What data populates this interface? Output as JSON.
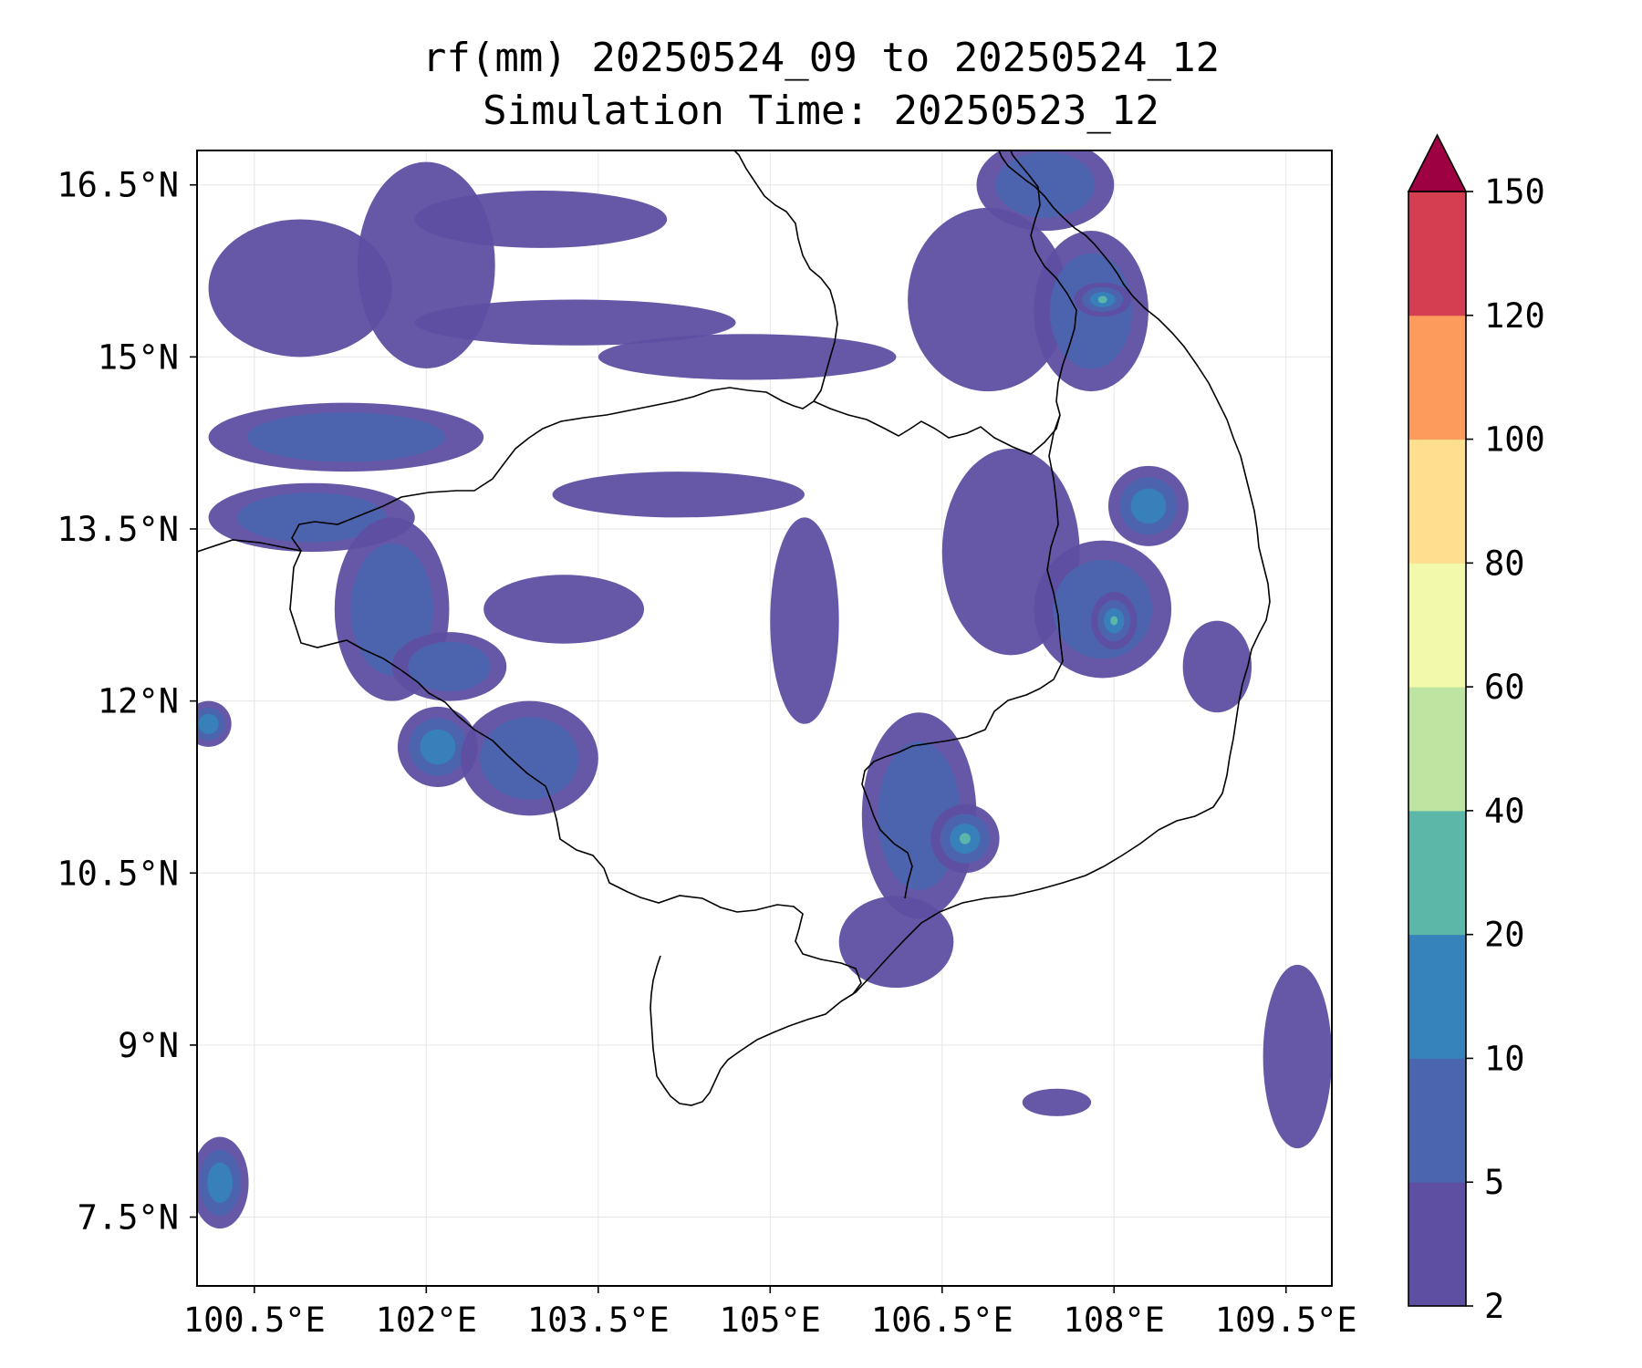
{
  "chart_data": {
    "type": "heatmap",
    "title": "rf(mm) 20250524_09 to 20250524_12",
    "subtitle": "Simulation Time: 20250523_12",
    "xlim": [
      100.0,
      109.9
    ],
    "ylim": [
      6.9,
      16.8
    ],
    "x_ticks": [
      100.5,
      102.0,
      103.5,
      105.0,
      106.5,
      108.0,
      109.5
    ],
    "y_ticks": [
      7.5,
      9.0,
      10.5,
      12.0,
      13.5,
      15.0,
      16.5
    ],
    "x_tick_labels": [
      "100.5°E",
      "102°E",
      "103.5°E",
      "105°E",
      "106.5°E",
      "108°E",
      "109.5°E"
    ],
    "y_tick_labels": [
      "7.5°N",
      "9°N",
      "10.5°N",
      "12°N",
      "13.5°N",
      "15°N",
      "16.5°N"
    ],
    "grid": true,
    "colorbar": {
      "levels": [
        2,
        5,
        10,
        20,
        40,
        60,
        80,
        100,
        120,
        150
      ],
      "tick_labels": [
        "2",
        "5",
        "10",
        "20",
        "40",
        "60",
        "80",
        "100",
        "120",
        "150"
      ],
      "colors": [
        "#5e4fa2",
        "#4b65ae",
        "#3682ba",
        "#5cb7a9",
        "#bde4a0",
        "#f2f9aa",
        "#fedf8f",
        "#fc9b5b",
        "#d53e50"
      ],
      "extend_color": "#9e0142",
      "extend": "max"
    },
    "rain_areas": [
      {
        "lon": 101.3,
        "lat": 14.3,
        "rx": 1.2,
        "ry": 0.3,
        "level": 1
      },
      {
        "lon": 100.9,
        "lat": 15.6,
        "rx": 0.8,
        "ry": 0.6,
        "level": 0
      },
      {
        "lon": 102.0,
        "lat": 15.8,
        "rx": 0.6,
        "ry": 0.9,
        "level": 0
      },
      {
        "lon": 103.3,
        "lat": 15.3,
        "rx": 1.4,
        "ry": 0.2,
        "level": 0
      },
      {
        "lon": 104.8,
        "lat": 15.0,
        "rx": 1.3,
        "ry": 0.2,
        "level": 0
      },
      {
        "lon": 103.0,
        "lat": 16.2,
        "rx": 1.1,
        "ry": 0.25,
        "level": 0
      },
      {
        "lon": 101.0,
        "lat": 13.6,
        "rx": 0.9,
        "ry": 0.3,
        "level": 1
      },
      {
        "lon": 101.7,
        "lat": 12.8,
        "rx": 0.5,
        "ry": 0.8,
        "level": 1
      },
      {
        "lon": 102.2,
        "lat": 12.3,
        "rx": 0.5,
        "ry": 0.3,
        "level": 1
      },
      {
        "lon": 102.1,
        "lat": 11.6,
        "rx": 0.35,
        "ry": 0.35,
        "level": 2
      },
      {
        "lon": 102.9,
        "lat": 11.5,
        "rx": 0.6,
        "ry": 0.5,
        "level": 1
      },
      {
        "lon": 103.2,
        "lat": 12.8,
        "rx": 0.7,
        "ry": 0.3,
        "level": 0
      },
      {
        "lon": 104.2,
        "lat": 13.8,
        "rx": 1.1,
        "ry": 0.2,
        "level": 0
      },
      {
        "lon": 105.3,
        "lat": 12.7,
        "rx": 0.3,
        "ry": 0.9,
        "level": 0
      },
      {
        "lon": 106.3,
        "lat": 11.0,
        "rx": 0.5,
        "ry": 0.9,
        "level": 1
      },
      {
        "lon": 106.7,
        "lat": 10.8,
        "rx": 0.3,
        "ry": 0.3,
        "level": 3
      },
      {
        "lon": 106.1,
        "lat": 9.9,
        "rx": 0.5,
        "ry": 0.4,
        "level": 0
      },
      {
        "lon": 106.9,
        "lat": 15.5,
        "rx": 0.7,
        "ry": 0.8,
        "level": 0
      },
      {
        "lon": 107.4,
        "lat": 16.5,
        "rx": 0.6,
        "ry": 0.4,
        "level": 1
      },
      {
        "lon": 107.8,
        "lat": 15.4,
        "rx": 0.5,
        "ry": 0.7,
        "level": 1
      },
      {
        "lon": 107.9,
        "lat": 15.5,
        "rx": 0.25,
        "ry": 0.15,
        "level": 3
      },
      {
        "lon": 107.1,
        "lat": 13.3,
        "rx": 0.6,
        "ry": 0.9,
        "level": 0
      },
      {
        "lon": 107.9,
        "lat": 12.8,
        "rx": 0.6,
        "ry": 0.6,
        "level": 1
      },
      {
        "lon": 108.0,
        "lat": 12.7,
        "rx": 0.2,
        "ry": 0.25,
        "level": 3
      },
      {
        "lon": 108.3,
        "lat": 13.7,
        "rx": 0.35,
        "ry": 0.35,
        "level": 2
      },
      {
        "lon": 108.9,
        "lat": 12.3,
        "rx": 0.3,
        "ry": 0.4,
        "level": 0
      },
      {
        "lon": 100.1,
        "lat": 11.8,
        "rx": 0.2,
        "ry": 0.2,
        "level": 2
      },
      {
        "lon": 100.2,
        "lat": 7.8,
        "rx": 0.25,
        "ry": 0.4,
        "level": 2
      },
      {
        "lon": 109.6,
        "lat": 8.9,
        "rx": 0.3,
        "ry": 0.8,
        "level": 0
      },
      {
        "lon": 107.5,
        "lat": 8.5,
        "rx": 0.3,
        "ry": 0.12,
        "level": 0
      }
    ]
  }
}
